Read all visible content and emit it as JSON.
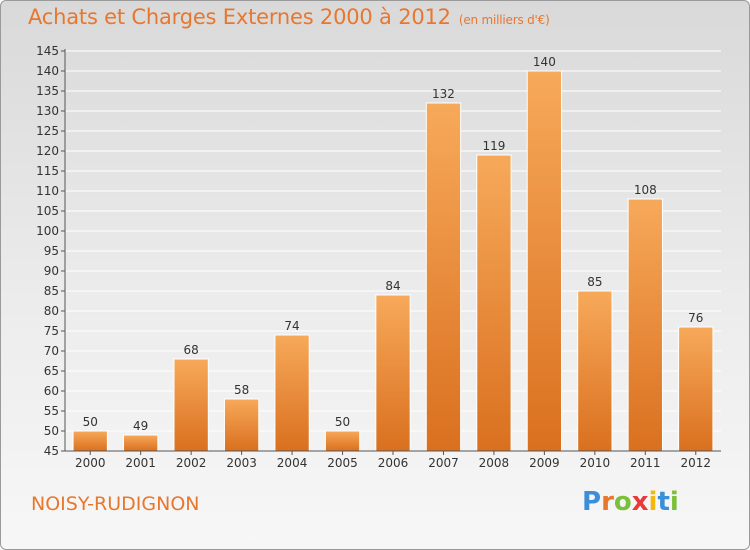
{
  "header": {
    "title": "Achats et Charges Externes 2000 à 2012",
    "subtitle": "(en milliers d'€)"
  },
  "footer": {
    "city": "NOISY-RUDIGNON",
    "logo_letters": [
      "P",
      "r",
      "o",
      "x",
      "i",
      "t",
      "i"
    ],
    "logo_colors": [
      "#3a8fd8",
      "#e8772e",
      "#7bbf3a",
      "#e83a3a",
      "#f2b90c",
      "#3a8fd8",
      "#7bbf3a"
    ]
  },
  "chart_data": {
    "type": "bar",
    "title": "Achats et Charges Externes 2000 à 2012",
    "subtitle": "(en milliers d'€)",
    "xlabel": "",
    "ylabel": "",
    "categories": [
      "2000",
      "2001",
      "2002",
      "2003",
      "2004",
      "2005",
      "2006",
      "2007",
      "2008",
      "2009",
      "2010",
      "2011",
      "2012"
    ],
    "values": [
      50,
      49,
      68,
      58,
      74,
      50,
      84,
      132,
      119,
      140,
      85,
      108,
      76
    ],
    "ylim": [
      45,
      145
    ],
    "yticks": [
      45,
      50,
      55,
      60,
      65,
      70,
      75,
      80,
      85,
      90,
      95,
      100,
      105,
      110,
      115,
      120,
      125,
      130,
      135,
      140,
      145
    ],
    "grid": true,
    "bar_color": "#f0913c",
    "bar_color_dark": "#d9701f",
    "grid_color": "#ffffff"
  }
}
